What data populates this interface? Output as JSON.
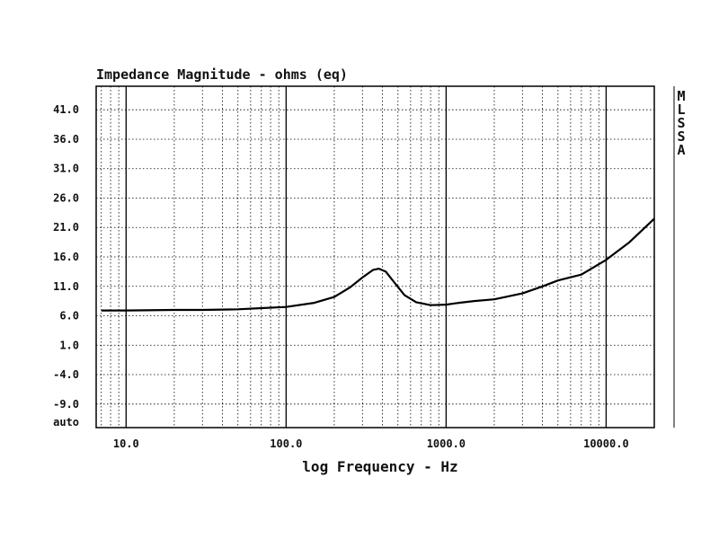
{
  "chart_data": {
    "type": "line",
    "title": "Impedance Magnitude - ohms (eq)",
    "xlabel": "log Frequency - Hz",
    "ylabel": "",
    "x_scale": "log",
    "xlim": [
      6.5,
      20000
    ],
    "ylim": [
      -13,
      45
    ],
    "y_ticks": [
      {
        "value": 41,
        "label": "41.0"
      },
      {
        "value": 36,
        "label": "36.0"
      },
      {
        "value": 31,
        "label": "31.0"
      },
      {
        "value": 26,
        "label": "26.0"
      },
      {
        "value": 21,
        "label": "21.0"
      },
      {
        "value": 16,
        "label": "16.0"
      },
      {
        "value": 11,
        "label": "11.0"
      },
      {
        "value": 6,
        "label": "6.0"
      },
      {
        "value": 1,
        "label": "1.0"
      },
      {
        "value": -4,
        "label": "-4.0"
      },
      {
        "value": -9,
        "label": "-9.0"
      }
    ],
    "y_bottom_label": "auto",
    "x_ticks": [
      {
        "value": 10,
        "label": "10.0"
      },
      {
        "value": 100,
        "label": "100.0"
      },
      {
        "value": 1000,
        "label": "1000.0"
      },
      {
        "value": 10000,
        "label": "10000.0"
      }
    ],
    "grid": true,
    "side_label": [
      "M",
      "L",
      "S",
      "S",
      "A"
    ],
    "series": [
      {
        "x": [
          7,
          10,
          20,
          30,
          50,
          70,
          100,
          150,
          200,
          250,
          300,
          350,
          380,
          420,
          480,
          550,
          650,
          800,
          1000,
          1200,
          1500,
          2000,
          3000,
          4000,
          5000,
          7000,
          10000,
          14000,
          20000
        ],
        "y": [
          6.9,
          6.9,
          7.0,
          7.0,
          7.1,
          7.3,
          7.5,
          8.2,
          9.2,
          10.8,
          12.5,
          13.8,
          14.0,
          13.5,
          11.5,
          9.5,
          8.3,
          7.8,
          7.9,
          8.2,
          8.5,
          8.8,
          9.8,
          11.0,
          12.0,
          13.0,
          15.5,
          18.5,
          22.5
        ]
      }
    ]
  }
}
